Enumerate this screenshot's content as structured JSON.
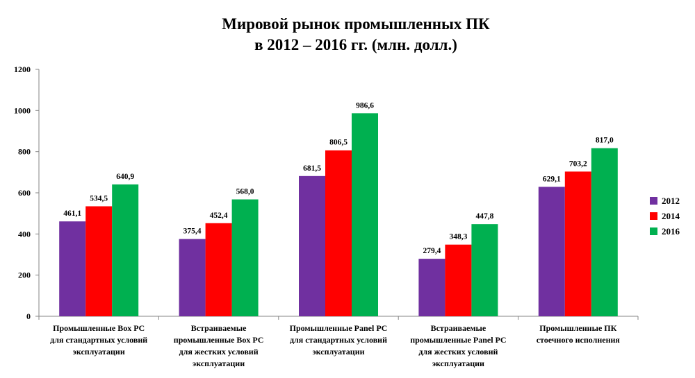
{
  "chart_data": {
    "type": "bar",
    "title_lines": [
      "Мировой рынок промышленных ПК",
      "в 2012 – 2016 гг. (млн. долл.)"
    ],
    "categories": [
      [
        "Промышленные Box PC",
        "для стандартных условий",
        "эксплуатации"
      ],
      [
        "Встраиваемые",
        "промышленные Box PC",
        "для жестких условий",
        "эксплуатации"
      ],
      [
        "Промышленные Panel PC",
        "для стандартных условий",
        "эксплуатации"
      ],
      [
        "Встраиваемые",
        "промышленные Panel PC",
        "для жестких условий",
        "эксплуатации"
      ],
      [
        "Промышленные ПК",
        "стоечного исполнения"
      ]
    ],
    "series": [
      {
        "name": "2012",
        "color": "#7030A0",
        "values": [
          461.1,
          375.4,
          681.5,
          279.4,
          629.1
        ],
        "labels": [
          "461,1",
          "375,4",
          "681,5",
          "279,4",
          "629,1"
        ]
      },
      {
        "name": "2014",
        "color": "#FF0000",
        "values": [
          534.5,
          452.4,
          806.5,
          348.3,
          703.2
        ],
        "labels": [
          "534,5",
          "452,4",
          "806,5",
          "348,3",
          "703,2"
        ]
      },
      {
        "name": "2016",
        "color": "#00B050",
        "values": [
          640.9,
          568.0,
          986.6,
          447.8,
          817.0
        ],
        "labels": [
          "640,9",
          "568,0",
          "986,6",
          "447,8",
          "817,0"
        ]
      }
    ],
    "ylim": [
      0,
      1200
    ],
    "yticks": [
      0,
      200,
      400,
      600,
      800,
      1000,
      1200
    ],
    "ytick_labels": [
      "0",
      "200",
      "400",
      "600",
      "800",
      "1000",
      "1200"
    ],
    "legend_position": "right",
    "grid": false
  }
}
